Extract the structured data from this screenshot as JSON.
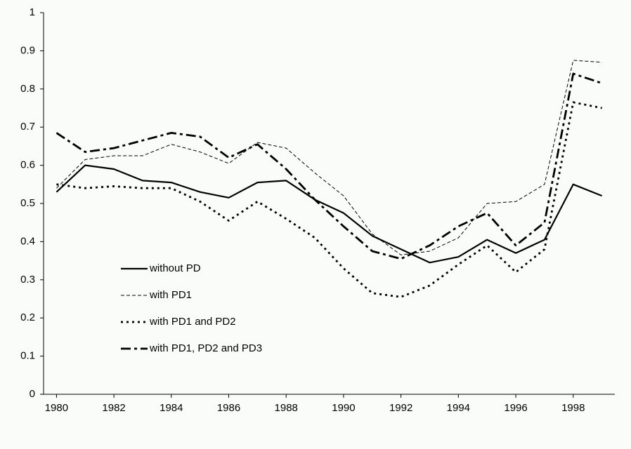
{
  "chart_data": {
    "type": "line",
    "x": [
      1980,
      1981,
      1982,
      1983,
      1984,
      1985,
      1986,
      1987,
      1988,
      1989,
      1990,
      1991,
      1992,
      1993,
      1994,
      1995,
      1996,
      1997,
      1998,
      1999
    ],
    "series": [
      {
        "name": "without PD",
        "color": "#000000",
        "style": "solid",
        "values": [
          0.53,
          0.6,
          0.59,
          0.56,
          0.555,
          0.53,
          0.515,
          0.555,
          0.56,
          0.51,
          0.475,
          0.415,
          0.38,
          0.345,
          0.36,
          0.405,
          0.37,
          0.405,
          0.55,
          0.52
        ]
      },
      {
        "name": "with PD1",
        "color": "#000000",
        "style": "dashed",
        "values": [
          0.54,
          0.615,
          0.625,
          0.625,
          0.655,
          0.635,
          0.605,
          0.66,
          0.645,
          0.58,
          0.52,
          0.42,
          0.365,
          0.375,
          0.41,
          0.5,
          0.505,
          0.55,
          0.875,
          0.87
        ]
      },
      {
        "name": "with PD1 and PD2",
        "color": "#000000",
        "style": "dotted",
        "values": [
          0.55,
          0.54,
          0.545,
          0.54,
          0.54,
          0.505,
          0.455,
          0.505,
          0.46,
          0.41,
          0.33,
          0.265,
          0.255,
          0.285,
          0.34,
          0.39,
          0.32,
          0.38,
          0.765,
          0.75
        ]
      },
      {
        "name": "with PD1, PD2 and PD3",
        "color": "#000000",
        "style": "dash-dot",
        "values": [
          0.685,
          0.635,
          0.645,
          0.665,
          0.685,
          0.675,
          0.62,
          0.655,
          0.59,
          0.51,
          0.44,
          0.375,
          0.355,
          0.39,
          0.44,
          0.475,
          0.39,
          0.45,
          0.84,
          0.815
        ]
      }
    ],
    "xlim": [
      1979.55,
      1999.45
    ],
    "xticks": [
      1980,
      1982,
      1984,
      1986,
      1988,
      1990,
      1992,
      1994,
      1996,
      1998
    ],
    "ylim": [
      0,
      1
    ],
    "yticks": [
      0,
      0.1,
      0.2,
      0.3,
      0.4,
      0.5,
      0.6,
      0.7,
      0.8,
      0.9,
      1
    ],
    "grid": false,
    "legend": "lower-left"
  }
}
